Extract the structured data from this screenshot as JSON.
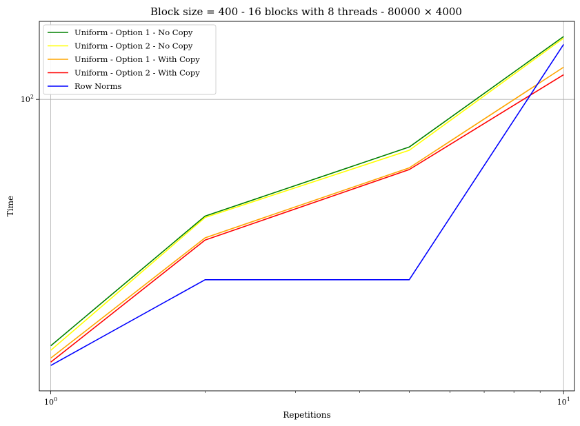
{
  "chart_data": {
    "type": "line",
    "title": "Block size = 400 - 16 blocks with 8 threads - 80000 × 4000",
    "xlabel": "Repetitions",
    "ylabel": "Time",
    "xscale": "log",
    "yscale": "log",
    "xlim": [
      0.95,
      10.5
    ],
    "ylim": [
      16.5,
      162
    ],
    "x": [
      1,
      2,
      5,
      10
    ],
    "xticks": [
      {
        "value": 1,
        "label": "10",
        "exp": "0"
      },
      {
        "value": 10,
        "label": "10",
        "exp": "1"
      }
    ],
    "yticks": [
      {
        "value": 100,
        "label": "10",
        "exp": "2"
      }
    ],
    "grid": true,
    "legend_position": "top-left",
    "series": [
      {
        "name": "Uniform - Option 1 - No Copy",
        "color": "#008000",
        "values": [
          21.8,
          48.6,
          74.5,
          147.5
        ]
      },
      {
        "name": "Uniform - Option 2 - No Copy",
        "color": "#ffff00",
        "values": [
          21.2,
          48.2,
          73.0,
          146.0
        ]
      },
      {
        "name": "Uniform - Option 1 - With Copy",
        "color": "#ffa500",
        "values": [
          20.2,
          42.5,
          65.5,
          122.0
        ]
      },
      {
        "name": "Uniform - Option 2 - With Copy",
        "color": "#ff0000",
        "values": [
          19.7,
          41.9,
          64.8,
          116.5
        ]
      },
      {
        "name": "Row Norms",
        "color": "#0000ff",
        "values": [
          19.3,
          32.8,
          32.8,
          140.5
        ]
      }
    ]
  }
}
